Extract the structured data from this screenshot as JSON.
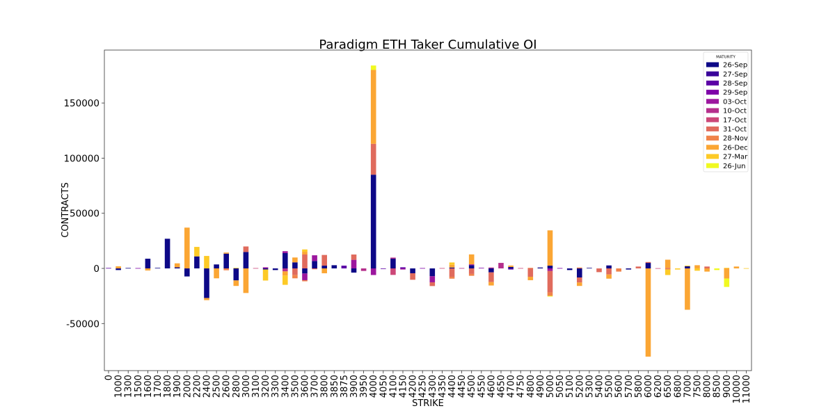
{
  "chart_data": {
    "type": "bar",
    "stacked": true,
    "title": "Paradigm ETH Taker Cumulative OI",
    "xlabel": "STRIKE",
    "ylabel": "CONTRACTS",
    "ylim": [
      -92700,
      198000
    ],
    "yticks": [
      -50000,
      0,
      50000,
      100000,
      150000
    ],
    "grid": false,
    "legend": {
      "title": "MATURITY",
      "placement": "top-right"
    },
    "series": [
      {
        "name": "26-Sep",
        "color": "#0d0887"
      },
      {
        "name": "27-Sep",
        "color": "#3a049a"
      },
      {
        "name": "28-Sep",
        "color": "#5c01a6"
      },
      {
        "name": "29-Sep",
        "color": "#7e03a8"
      },
      {
        "name": "03-Oct",
        "color": "#9c179e"
      },
      {
        "name": "10-Oct",
        "color": "#b52f8c"
      },
      {
        "name": "17-Oct",
        "color": "#cc4778"
      },
      {
        "name": "31-Oct",
        "color": "#e06b5d"
      },
      {
        "name": "28-Nov",
        "color": "#f0834a"
      },
      {
        "name": "26-Dec",
        "color": "#fba634"
      },
      {
        "name": "27-Mar",
        "color": "#fdca26"
      },
      {
        "name": "26-Jun",
        "color": "#f0f921"
      }
    ],
    "categories": [
      "0",
      "1000",
      "1300",
      "1500",
      "1600",
      "1700",
      "1800",
      "1900",
      "2000",
      "2200",
      "2400",
      "2500",
      "2600",
      "2800",
      "3000",
      "3100",
      "3200",
      "3300",
      "3400",
      "3500",
      "3600",
      "3700",
      "3800",
      "3850",
      "3875",
      "3900",
      "3950",
      "4000",
      "4050",
      "4100",
      "4150",
      "4200",
      "4250",
      "4300",
      "4350",
      "4400",
      "4450",
      "4500",
      "4550",
      "4600",
      "4650",
      "4700",
      "4750",
      "4800",
      "4900",
      "5000",
      "5050",
      "5100",
      "5200",
      "5300",
      "5400",
      "5500",
      "5600",
      "5700",
      "5800",
      "6000",
      "6200",
      "6500",
      "6800",
      "7000",
      "7500",
      "8000",
      "8500",
      "9000",
      "10000",
      "11000"
    ],
    "stacks": [
      {
        "28-Sep": 400
      },
      {
        "26-Sep": -1500,
        "26-Dec": 1900
      },
      {
        "26-Sep": 400
      },
      {
        "29-Sep": 300
      },
      {
        "26-Sep": 8800,
        "26-Dec": -1900
      },
      {
        "26-Sep": 500
      },
      {
        "26-Sep": 26900
      },
      {
        "26-Sep": 1000,
        "26-Dec": 3600
      },
      {
        "26-Sep": -7300,
        "26-Dec": 37000
      },
      {
        "26-Sep": 10900,
        "27-Mar": 8600
      },
      {
        "26-Sep": -26900,
        "26-Dec": -1900,
        "27-Mar": 11300
      },
      {
        "26-Sep": 3600,
        "26-Dec": -9000
      },
      {
        "26-Sep": 13400,
        "26-Dec": 1000,
        "28-Nov": -1700
      },
      {
        "26-Sep": -10900,
        "26-Dec": -5000,
        "27-Mar": 500
      },
      {
        "26-Sep": 14900,
        "31-Oct": 5000,
        "26-Dec": -22300
      },
      {
        "17-Oct": 300
      },
      {
        "26-Sep": -1000,
        "03-Oct": 1000,
        "27-Mar": -10000
      },
      {
        "26-Sep": -1500
      },
      {
        "26-Sep": 13900,
        "03-Oct": 1700,
        "10-Oct": -2700,
        "26-Dec": -3800,
        "27-Mar": -8400
      },
      {
        "26-Sep": 5500,
        "31-Oct": -5900,
        "26-Dec": 4400,
        "28-Nov": -3100
      },
      {
        "26-Sep": -4600,
        "03-Oct": -6100,
        "31-Oct": 12600,
        "26-Dec": 2500,
        "28-Nov": -1000,
        "27-Mar": 2100
      },
      {
        "26-Sep": 6700,
        "03-Oct": 5200,
        "31-Oct": -800
      },
      {
        "26-Sep": 2500,
        "31-Oct": 9700,
        "26-Dec": -4400
      },
      {
        "26-Sep": 2900
      },
      {
        "28-Sep": 2500
      },
      {
        "26-Sep": -3800,
        "03-Oct": 7800,
        "31-Oct": 4800
      },
      {
        "10-Oct": -2300
      },
      {
        "26-Sep": 85000,
        "03-Oct": -6000,
        "31-Oct": 28000,
        "26-Dec": 67000,
        "26-Jun": 4000
      },
      {
        "28-Sep": -500
      },
      {
        "26-Sep": 8800,
        "10-Oct": 1000,
        "17-Oct": -5900
      },
      {
        "28-Sep": 1000,
        "03-Oct": -1000
      },
      {
        "26-Sep": -4400,
        "31-Oct": -5900
      },
      {
        "29-Sep": 300
      },
      {
        "26-Sep": -7100,
        "03-Oct": -5500,
        "31-Oct": -3400
      },
      {
        "17-Oct": 300
      },
      {
        "26-Sep": 800,
        "31-Oct": -7600,
        "26-Dec": 2500,
        "28-Nov": -1700,
        "27-Mar": 2100
      },
      {
        "10-Oct": 300
      },
      {
        "26-Sep": 2900,
        "03-Oct": 800,
        "31-Oct": -5000,
        "26-Dec": 9000,
        "28-Nov": -1700
      },
      {
        "29-Sep": 500
      },
      {
        "26-Sep": -3600,
        "10-Oct": 800,
        "31-Oct": -8800,
        "26-Dec": -3100
      },
      {
        "10-Oct": 5000
      },
      {
        "26-Sep": 1300,
        "28-Sep": -1000,
        "26-Dec": 1300
      },
      {
        "17-Oct": 300
      },
      {
        "31-Oct": -7600,
        "26-Dec": -3100,
        "28-Nov": 500
      },
      {
        "26-Sep": 800
      },
      {
        "26-Sep": 2500,
        "03-Oct": -2300,
        "31-Oct": -19500,
        "26-Dec": 32000,
        "28-Nov": -3100,
        "26-Jun": -600
      },
      {
        "29-Sep": 300
      },
      {
        "26-Sep": -1500
      },
      {
        "26-Sep": -8200,
        "31-Oct": -4600,
        "28-Nov": 800,
        "26-Dec": -3100
      },
      {
        "26-Sep": 500
      },
      {
        "31-Oct": -3400
      },
      {
        "26-Sep": 2700,
        "31-Oct": -5500,
        "26-Dec": -3800
      },
      {
        "28-Nov": -2900
      },
      {
        "26-Sep": -1000
      },
      {
        "31-Oct": 1700
      },
      {
        "26-Sep": 5000,
        "31-Oct": 800,
        "26-Dec": -80000
      },
      {
        "17-Oct": 200
      },
      {
        "31-Oct": 500,
        "26-Dec": 7400,
        "28-Nov": -1000,
        "27-Mar": -5000
      },
      {
        "27-Mar": -1000
      },
      {
        "26-Sep": 1900,
        "26-Dec": -37500,
        "27-Mar": 600
      },
      {
        "26-Dec": 2900,
        "27-Mar": -2100
      },
      {
        "31-Oct": 1700,
        "26-Dec": -2900
      },
      {
        "26-Jun": -1500
      },
      {
        "26-Dec": -9200,
        "26-Jun": -7600,
        "27-Mar": 500
      },
      {
        "26-Dec": 1700
      },
      {
        "27-Mar": 200
      }
    ]
  }
}
